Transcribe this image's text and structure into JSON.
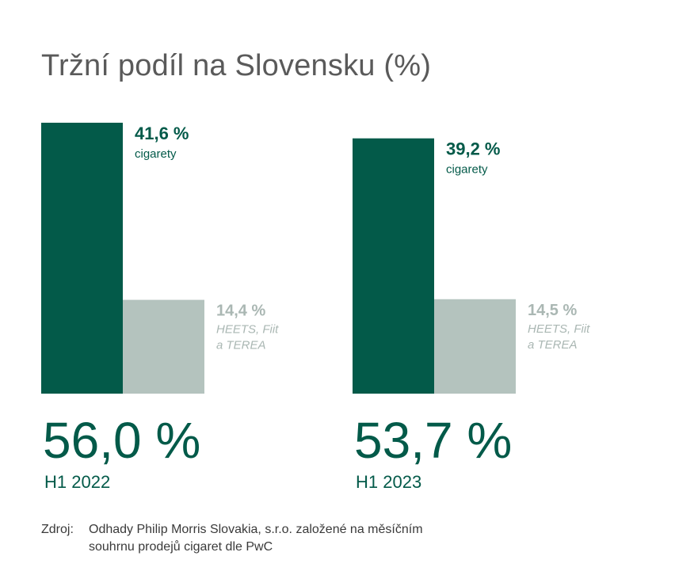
{
  "title": "Tržní podíl na Slovensku (%)",
  "colors": {
    "primary": "#035a49",
    "secondary": "#b4c3be",
    "secondary_text": "#aab7b3",
    "text_dark": "#3a3a3a"
  },
  "chart_data": {
    "type": "bar",
    "title": "Tržní podíl na Slovensku (%)",
    "unit": "%",
    "ylim": [
      0,
      45
    ],
    "groups": [
      {
        "period": "H1 2022",
        "total_label": "56,0 %",
        "total": 56.0,
        "bars": [
          {
            "category": "cigarety",
            "value": 41.6,
            "value_label": "41,6 %",
            "label_lines": [
              "cigarety"
            ]
          },
          {
            "category": "HEETS, Fiit a TEREA",
            "value": 14.4,
            "value_label": "14,4 %",
            "label_lines": [
              "HEETS, Fiit",
              "a TEREA"
            ]
          }
        ]
      },
      {
        "period": "H1 2023",
        "total_label": "53,7 %",
        "total": 53.7,
        "bars": [
          {
            "category": "cigarety",
            "value": 39.2,
            "value_label": "39,2 %",
            "label_lines": [
              "cigarety"
            ]
          },
          {
            "category": "HEETS, Fiit a TEREA",
            "value": 14.5,
            "value_label": "14,5 %",
            "label_lines": [
              "HEETS, Fiit",
              "a TEREA"
            ]
          }
        ]
      }
    ]
  },
  "source": {
    "label": "Zdroj:",
    "line1": "Odhady Philip Morris Slovakia, s.r.o. založené na měsíčním",
    "line2": "souhrnu prodejů cigaret dle PwC"
  }
}
